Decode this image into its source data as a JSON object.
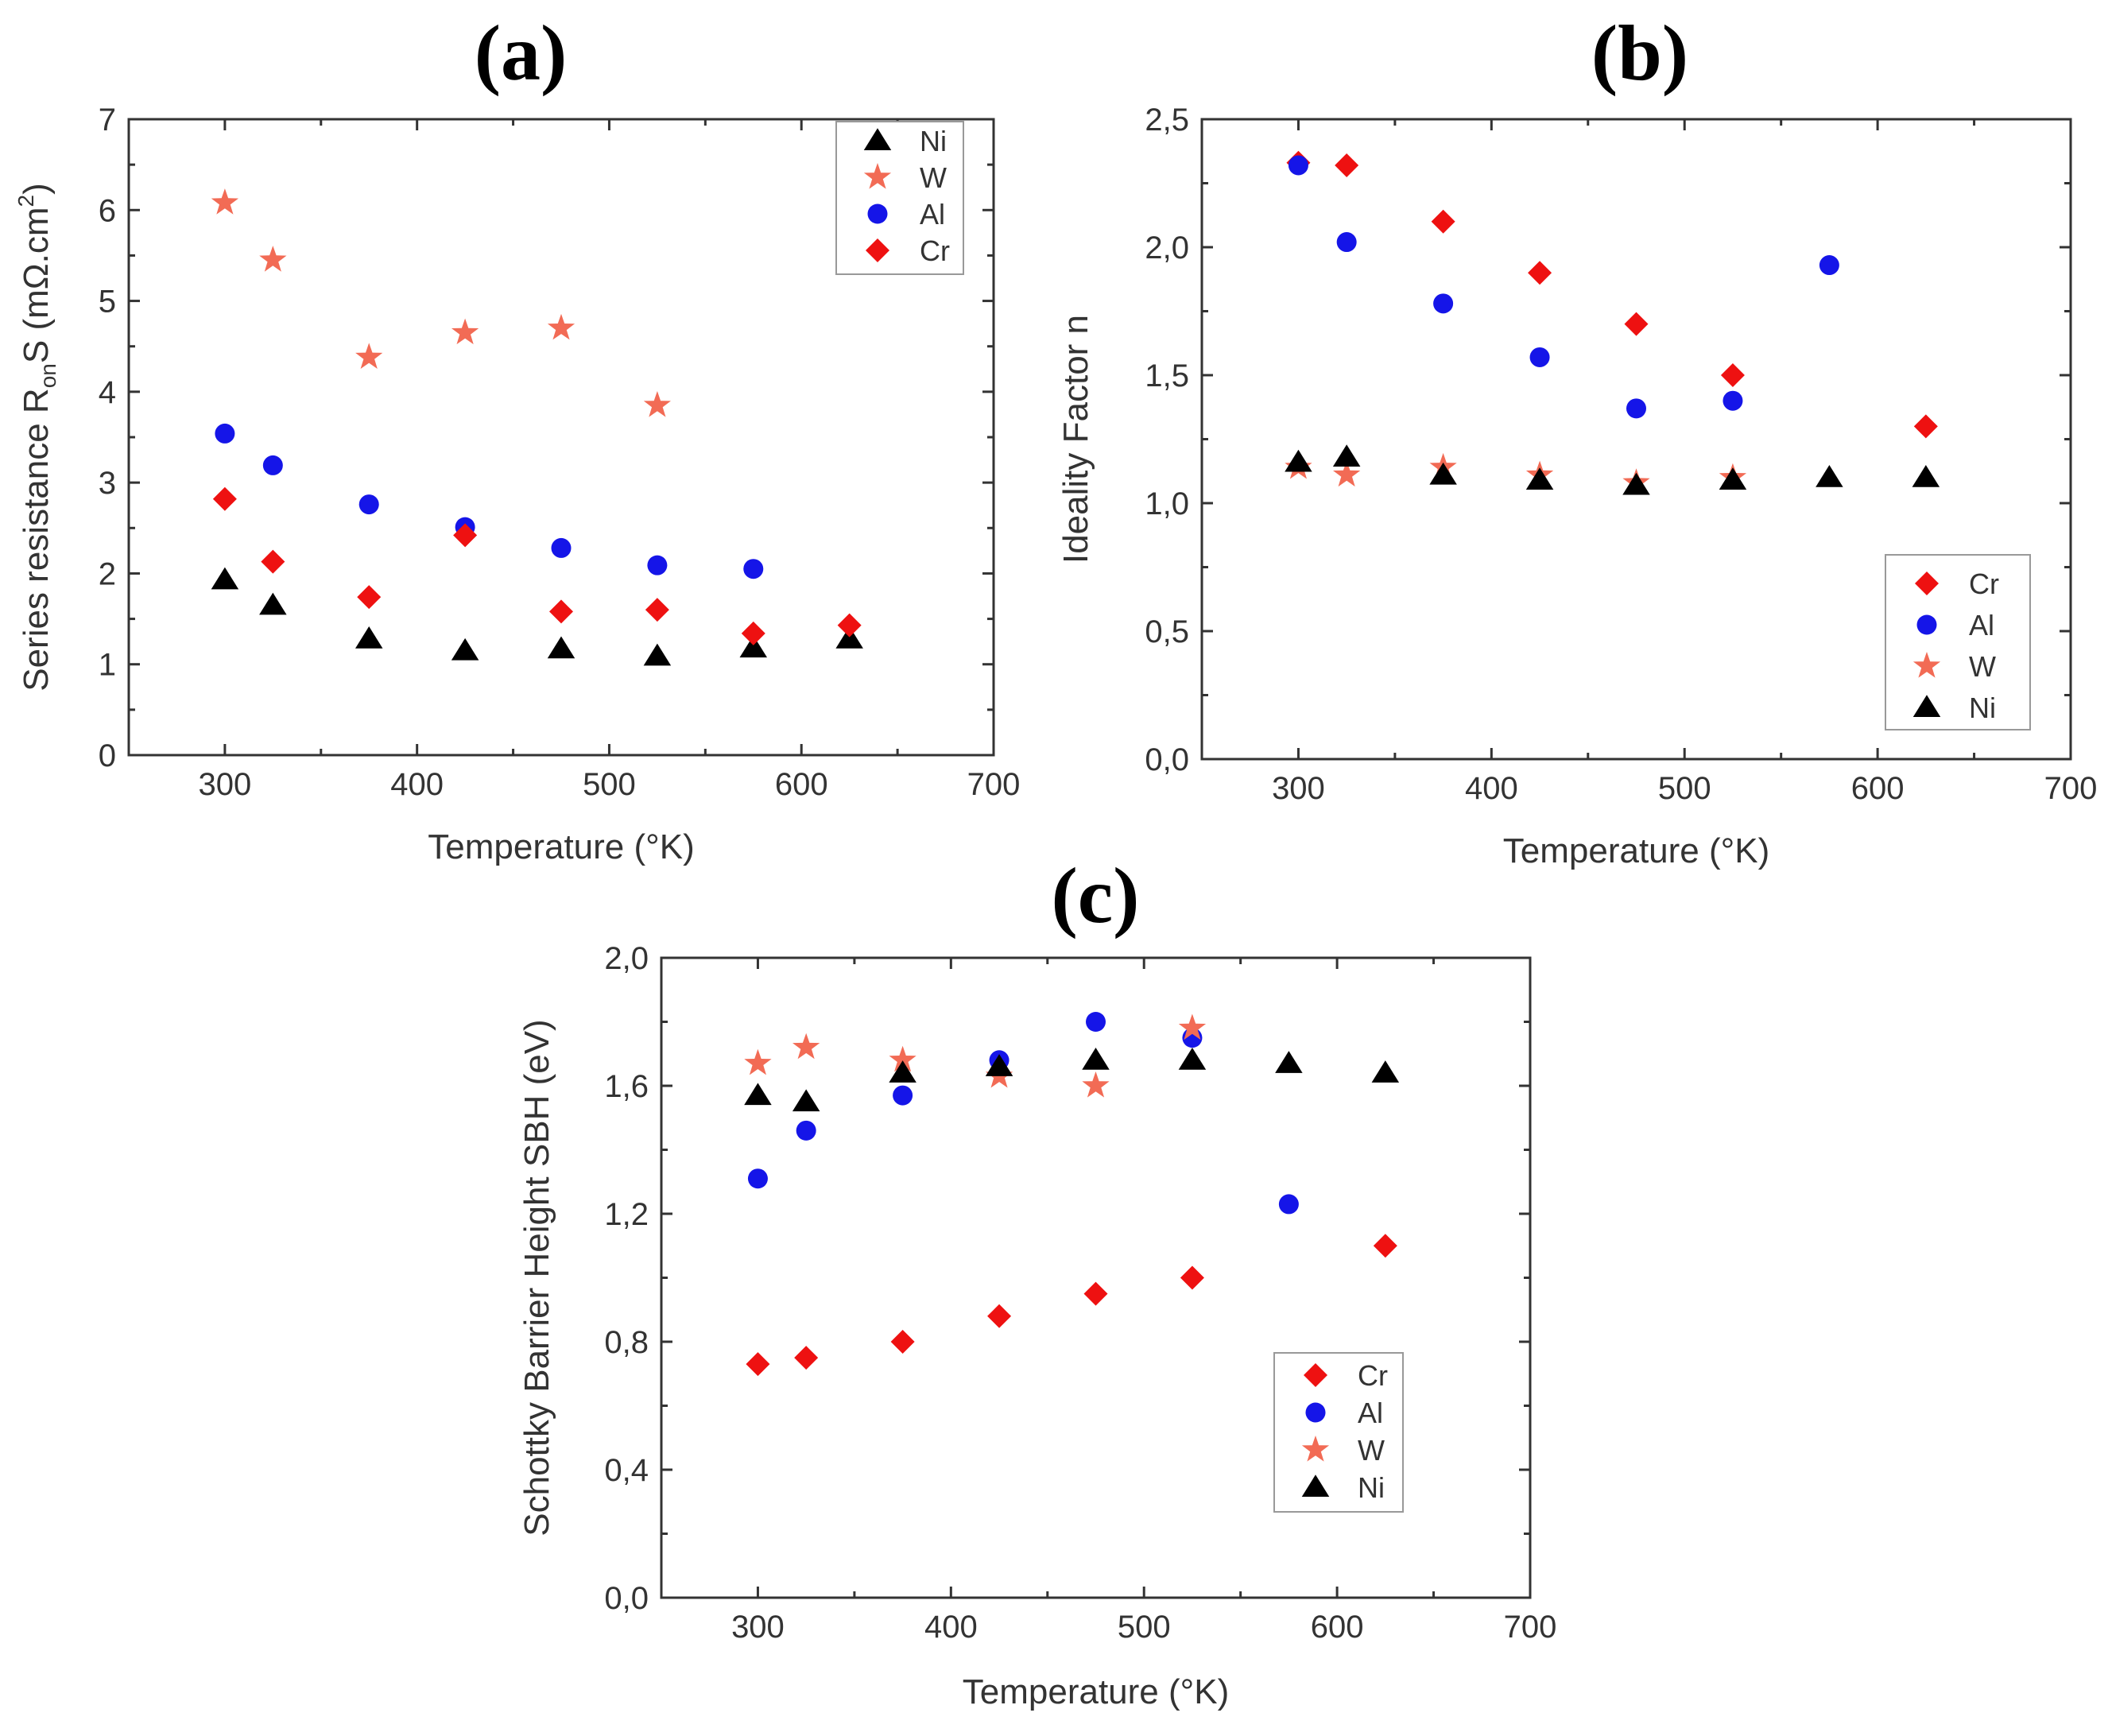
{
  "chart_data": [
    {
      "type": "scatter",
      "panel_label": "(a)",
      "xlabel": "Temperature (°K)",
      "ylabel": "Series resistance  R",
      "ylabel_sub": "on",
      "ylabel_rest": "S (mΩ.cm",
      "ylabel_sup": "2",
      "ylabel_end": ")",
      "xlim": [
        250,
        700
      ],
      "ylim": [
        0,
        7
      ],
      "xticks": [
        300,
        400,
        500,
        600,
        700
      ],
      "xtick_labels": [
        "300",
        "400",
        "500",
        "600",
        "700"
      ],
      "yticks": [
        0,
        1,
        2,
        3,
        4,
        5,
        6,
        7
      ],
      "ytick_labels": [
        "0",
        "1",
        "2",
        "3",
        "4",
        "5",
        "6",
        "7"
      ],
      "legend_position": "top-right",
      "series": [
        {
          "name": "Ni",
          "marker": "triangle",
          "color": "#000000",
          "x": [
            300,
            325,
            375,
            425,
            475,
            525,
            575,
            625
          ],
          "y": [
            1.93,
            1.65,
            1.28,
            1.15,
            1.17,
            1.09,
            1.18,
            1.28
          ]
        },
        {
          "name": "W",
          "marker": "star",
          "color": "#f26b55",
          "x": [
            300,
            325,
            375,
            425,
            475,
            525
          ],
          "y": [
            6.08,
            5.45,
            4.38,
            4.65,
            4.7,
            3.85
          ]
        },
        {
          "name": "Al",
          "marker": "circle",
          "color": "#1515e8",
          "x": [
            300,
            325,
            375,
            425,
            475,
            525,
            575
          ],
          "y": [
            3.54,
            3.19,
            2.76,
            2.51,
            2.28,
            2.09,
            2.05
          ]
        },
        {
          "name": "Cr",
          "marker": "diamond",
          "color": "#ee1111",
          "x": [
            300,
            325,
            375,
            425,
            475,
            525,
            575,
            625
          ],
          "y": [
            2.82,
            2.13,
            1.74,
            2.42,
            1.58,
            1.6,
            1.34,
            1.43
          ]
        }
      ]
    },
    {
      "type": "scatter",
      "panel_label": "(b)",
      "xlabel": "Temperature (°K)",
      "ylabel": "Ideality Factor n",
      "xlim": [
        250,
        700
      ],
      "ylim": [
        0,
        2.5
      ],
      "xticks": [
        300,
        400,
        500,
        600,
        700
      ],
      "xtick_labels": [
        "300",
        "400",
        "500",
        "600",
        "700"
      ],
      "yticks": [
        0,
        0.5,
        1.0,
        1.5,
        2.0,
        2.5
      ],
      "ytick_labels": [
        "0,0",
        "0,5",
        "1,0",
        "1,5",
        "2,0",
        "2,5"
      ],
      "legend_position": "bottom-right",
      "series": [
        {
          "name": "Cr",
          "marker": "diamond",
          "color": "#ee1111",
          "x": [
            300,
            325,
            375,
            425,
            475,
            525,
            625
          ],
          "y": [
            2.33,
            2.32,
            2.1,
            1.9,
            1.7,
            1.5,
            1.3
          ]
        },
        {
          "name": "Al",
          "marker": "circle",
          "color": "#1515e8",
          "x": [
            300,
            325,
            375,
            425,
            475,
            525,
            575
          ],
          "y": [
            2.32,
            2.02,
            1.78,
            1.57,
            1.37,
            1.4,
            1.93
          ]
        },
        {
          "name": "W",
          "marker": "star",
          "color": "#f26b55",
          "x": [
            300,
            325,
            375,
            425,
            475,
            525
          ],
          "y": [
            1.14,
            1.11,
            1.14,
            1.11,
            1.08,
            1.1
          ]
        },
        {
          "name": "Ni",
          "marker": "triangle",
          "color": "#000000",
          "x": [
            300,
            325,
            375,
            425,
            475,
            525,
            575,
            625
          ],
          "y": [
            1.16,
            1.18,
            1.11,
            1.09,
            1.07,
            1.09,
            1.1,
            1.1
          ]
        }
      ]
    },
    {
      "type": "scatter",
      "panel_label": "(c)",
      "xlabel": "Temperature (°K)",
      "ylabel": "Schottky Barrier Height SBH (eV)",
      "xlim": [
        250,
        700
      ],
      "ylim": [
        0,
        2.0
      ],
      "xticks": [
        300,
        400,
        500,
        600,
        700
      ],
      "xtick_labels": [
        "300",
        "400",
        "500",
        "600",
        "700"
      ],
      "yticks": [
        0,
        0.4,
        0.8,
        1.2,
        1.6,
        2.0
      ],
      "ytick_labels": [
        "0,0",
        "0,4",
        "0,8",
        "1,2",
        "1,6",
        "2,0"
      ],
      "legend_position": "bottom-right",
      "series": [
        {
          "name": "Cr",
          "marker": "diamond",
          "color": "#ee1111",
          "x": [
            300,
            325,
            375,
            425,
            475,
            525,
            625
          ],
          "y": [
            0.73,
            0.75,
            0.8,
            0.88,
            0.95,
            1.0,
            1.1
          ]
        },
        {
          "name": "Al",
          "marker": "circle",
          "color": "#1515e8",
          "x": [
            300,
            325,
            375,
            425,
            475,
            525,
            575
          ],
          "y": [
            1.31,
            1.46,
            1.57,
            1.68,
            1.8,
            1.75,
            1.23
          ]
        },
        {
          "name": "W",
          "marker": "star",
          "color": "#f26b55",
          "x": [
            300,
            325,
            375,
            425,
            475,
            525
          ],
          "y": [
            1.67,
            1.72,
            1.68,
            1.63,
            1.6,
            1.78
          ]
        },
        {
          "name": "Ni",
          "marker": "triangle",
          "color": "#000000",
          "x": [
            300,
            325,
            375,
            425,
            475,
            525,
            575,
            625
          ],
          "y": [
            1.57,
            1.55,
            1.64,
            1.66,
            1.68,
            1.68,
            1.67,
            1.64
          ]
        }
      ]
    }
  ]
}
